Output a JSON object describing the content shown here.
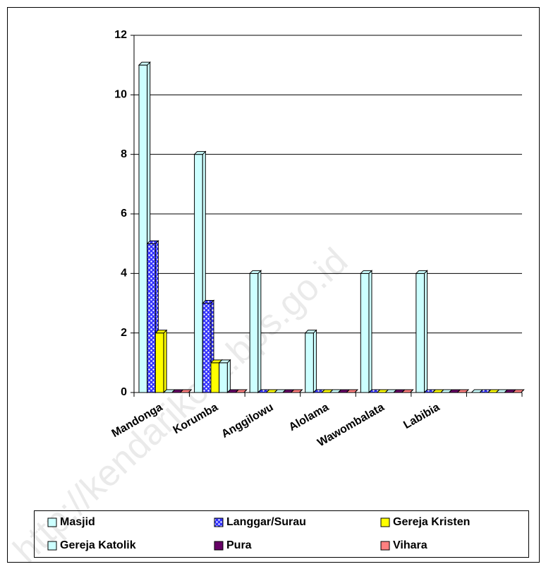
{
  "chart_data": {
    "type": "bar",
    "categories": [
      "Mandonga",
      "Korumba",
      "Anggilowu",
      "Alolama",
      "Wawombalata",
      "Labibia",
      null
    ],
    "series": [
      {
        "name": "Masjid",
        "color": "#ccffff",
        "values": [
          11,
          8,
          4,
          2,
          4,
          4,
          0
        ]
      },
      {
        "name": "Langgar/Surau",
        "color": "#3333ff",
        "values": [
          5,
          3,
          0,
          0,
          0,
          0,
          0
        ]
      },
      {
        "name": "Gereja Kristen",
        "color": "#ffff00",
        "values": [
          2,
          1,
          0,
          0,
          0,
          0,
          0
        ]
      },
      {
        "name": "Gereja Katolik",
        "color": "#ccffff",
        "values": [
          0,
          1,
          0,
          0,
          0,
          0,
          0
        ]
      },
      {
        "name": "Pura",
        "color": "#660066",
        "values": [
          0,
          0,
          0,
          0,
          0,
          0,
          0
        ]
      },
      {
        "name": "Vihara",
        "color": "#ff8080",
        "values": [
          0,
          0,
          0,
          0,
          0,
          0,
          0
        ]
      }
    ],
    "ylim": [
      0,
      12
    ],
    "yticks": [
      0,
      2,
      4,
      6,
      8,
      10,
      12
    ],
    "grid": true,
    "legend": "bottom"
  },
  "watermark": "http://kendarikota.bps.go.id"
}
